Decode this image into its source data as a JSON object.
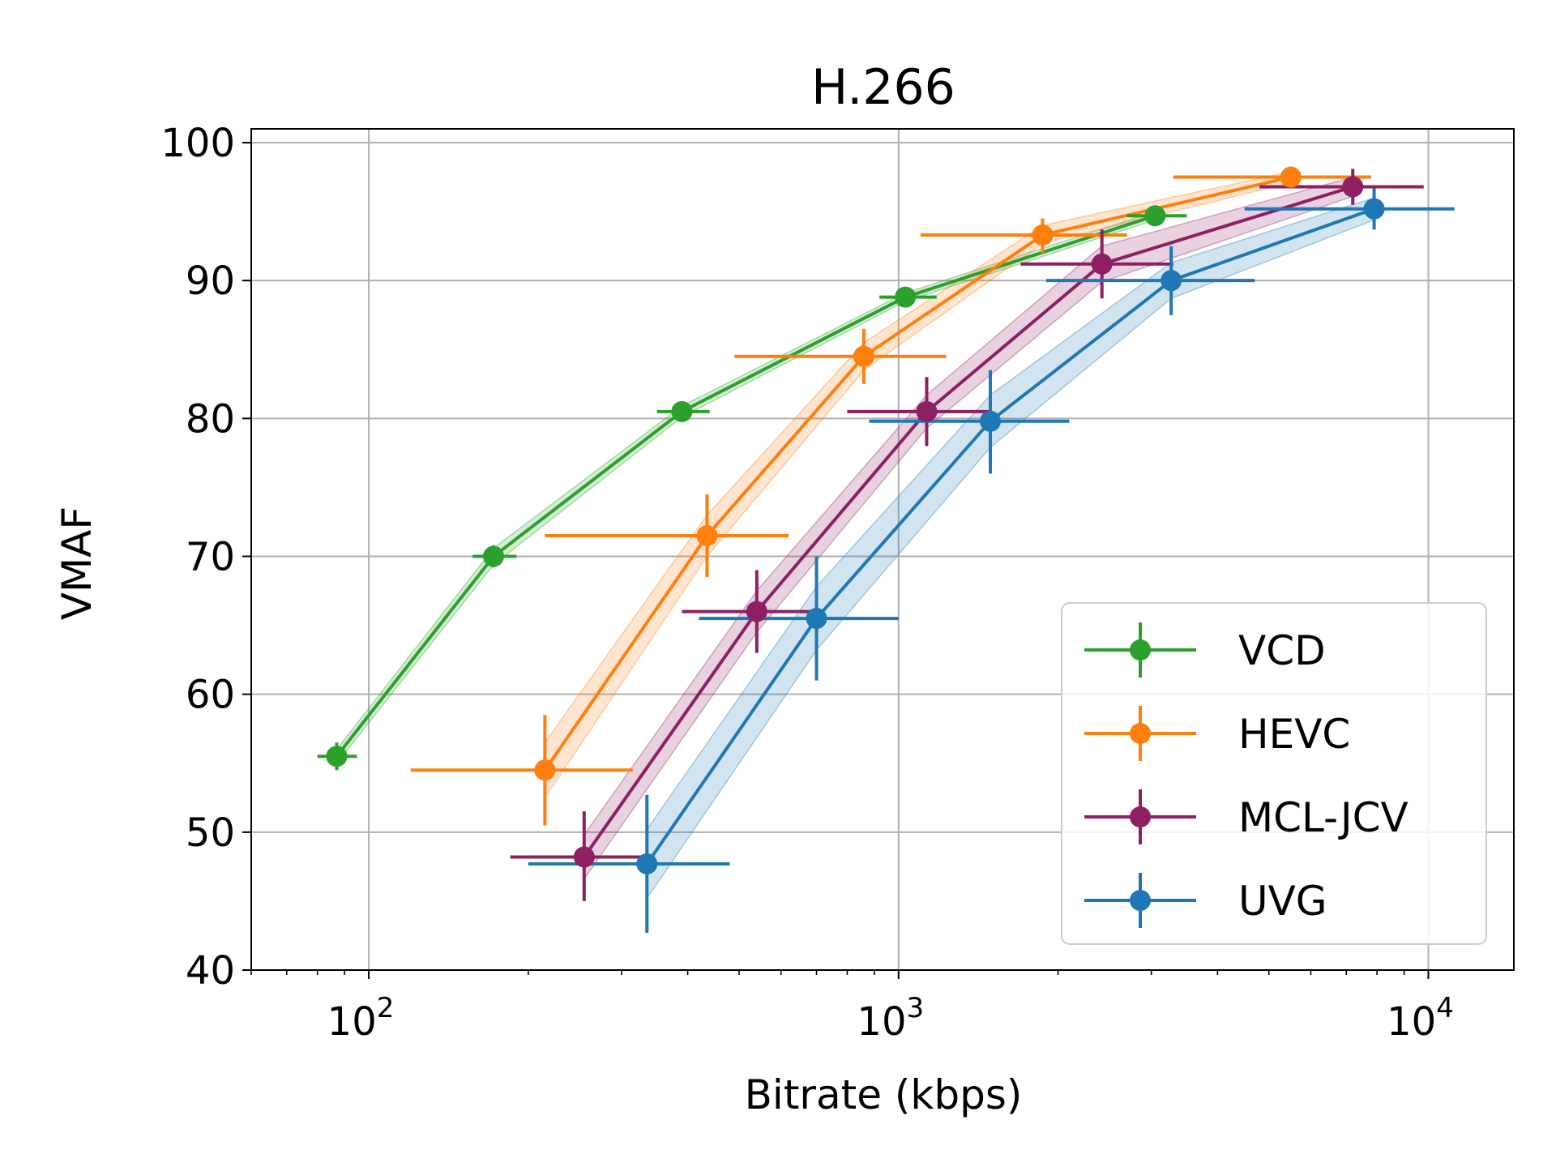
{
  "chart_data": {
    "type": "line",
    "title": "H.266",
    "xlabel": "Bitrate (kbps)",
    "ylabel": "VMAF",
    "xscale": "log",
    "xlim": [
      60,
      14500
    ],
    "ylim": [
      40,
      101
    ],
    "xticks": [
      {
        "value": 100,
        "base": "10",
        "exp": "2"
      },
      {
        "value": 1000,
        "base": "10",
        "exp": "3"
      },
      {
        "value": 10000,
        "base": "10",
        "exp": "4"
      }
    ],
    "yticks": [
      "40",
      "50",
      "60",
      "70",
      "80",
      "90",
      "100"
    ],
    "grid": true,
    "legend_position": "lower-right",
    "series": [
      {
        "name": "VCD",
        "color": "#2ca02c",
        "points": [
          {
            "x": 87,
            "y": 55.5,
            "xlo": 80,
            "xhi": 95,
            "ylo": 54.5,
            "yhi": 56.5,
            "band_lo": 55.0,
            "band_hi": 56.0
          },
          {
            "x": 172,
            "y": 70.0,
            "xlo": 157,
            "xhi": 190,
            "ylo": 69.2,
            "yhi": 70.8,
            "band_lo": 69.4,
            "band_hi": 70.6
          },
          {
            "x": 390,
            "y": 80.5,
            "xlo": 350,
            "xhi": 440,
            "ylo": 80.0,
            "yhi": 81.0,
            "band_lo": 80.1,
            "band_hi": 80.9
          },
          {
            "x": 1030,
            "y": 88.8,
            "xlo": 920,
            "xhi": 1180,
            "ylo": 88.4,
            "yhi": 89.2,
            "band_lo": 88.5,
            "band_hi": 89.1
          },
          {
            "x": 3050,
            "y": 94.7,
            "xlo": 2700,
            "xhi": 3500,
            "ylo": 94.2,
            "yhi": 95.1,
            "band_lo": 94.4,
            "band_hi": 95.0
          }
        ]
      },
      {
        "name": "HEVC",
        "color": "#ff7f0e",
        "points": [
          {
            "x": 215,
            "y": 54.5,
            "xlo": 120,
            "xhi": 315,
            "ylo": 50.5,
            "yhi": 58.5,
            "band_lo": 52.5,
            "band_hi": 56.5
          },
          {
            "x": 435,
            "y": 71.5,
            "xlo": 215,
            "xhi": 620,
            "ylo": 68.5,
            "yhi": 74.5,
            "band_lo": 70.0,
            "band_hi": 73.0
          },
          {
            "x": 860,
            "y": 84.5,
            "xlo": 490,
            "xhi": 1230,
            "ylo": 82.5,
            "yhi": 86.5,
            "band_lo": 83.5,
            "band_hi": 85.5
          },
          {
            "x": 1870,
            "y": 93.3,
            "xlo": 1100,
            "xhi": 2700,
            "ylo": 92.0,
            "yhi": 94.5,
            "band_lo": 92.7,
            "band_hi": 94.0
          },
          {
            "x": 5500,
            "y": 97.5,
            "xlo": 3300,
            "xhi": 7800,
            "ylo": 96.9,
            "yhi": 98.0,
            "band_lo": 97.1,
            "band_hi": 97.9
          }
        ]
      },
      {
        "name": "MCL-JCV",
        "color": "#8e1f62",
        "points": [
          {
            "x": 255,
            "y": 48.2,
            "xlo": 185,
            "xhi": 335,
            "ylo": 45.0,
            "yhi": 51.5,
            "band_lo": 46.6,
            "band_hi": 49.8
          },
          {
            "x": 540,
            "y": 66.0,
            "xlo": 390,
            "xhi": 710,
            "ylo": 63.0,
            "yhi": 69.0,
            "band_lo": 64.5,
            "band_hi": 67.5
          },
          {
            "x": 1130,
            "y": 80.5,
            "xlo": 800,
            "xhi": 1500,
            "ylo": 78.0,
            "yhi": 83.0,
            "band_lo": 79.3,
            "band_hi": 81.7
          },
          {
            "x": 2420,
            "y": 91.2,
            "xlo": 1700,
            "xhi": 3300,
            "ylo": 88.7,
            "yhi": 93.7,
            "band_lo": 89.9,
            "band_hi": 92.5
          },
          {
            "x": 7200,
            "y": 96.8,
            "xlo": 4800,
            "xhi": 9800,
            "ylo": 95.5,
            "yhi": 98.1,
            "band_lo": 96.1,
            "band_hi": 97.5
          }
        ]
      },
      {
        "name": "UVG",
        "color": "#1f77b4",
        "points": [
          {
            "x": 335,
            "y": 47.7,
            "xlo": 200,
            "xhi": 480,
            "ylo": 42.7,
            "yhi": 52.7,
            "band_lo": 45.2,
            "band_hi": 50.2
          },
          {
            "x": 700,
            "y": 65.5,
            "xlo": 420,
            "xhi": 1000,
            "ylo": 61.0,
            "yhi": 70.0,
            "band_lo": 63.2,
            "band_hi": 67.8
          },
          {
            "x": 1490,
            "y": 79.8,
            "xlo": 880,
            "xhi": 2100,
            "ylo": 76.0,
            "yhi": 83.5,
            "band_lo": 77.9,
            "band_hi": 81.7
          },
          {
            "x": 3270,
            "y": 90.0,
            "xlo": 1900,
            "xhi": 4700,
            "ylo": 87.5,
            "yhi": 92.5,
            "band_lo": 88.7,
            "band_hi": 91.3
          },
          {
            "x": 7900,
            "y": 95.2,
            "xlo": 4500,
            "xhi": 11200,
            "ylo": 93.7,
            "yhi": 96.7,
            "band_lo": 94.4,
            "band_hi": 96.0
          }
        ]
      }
    ]
  }
}
